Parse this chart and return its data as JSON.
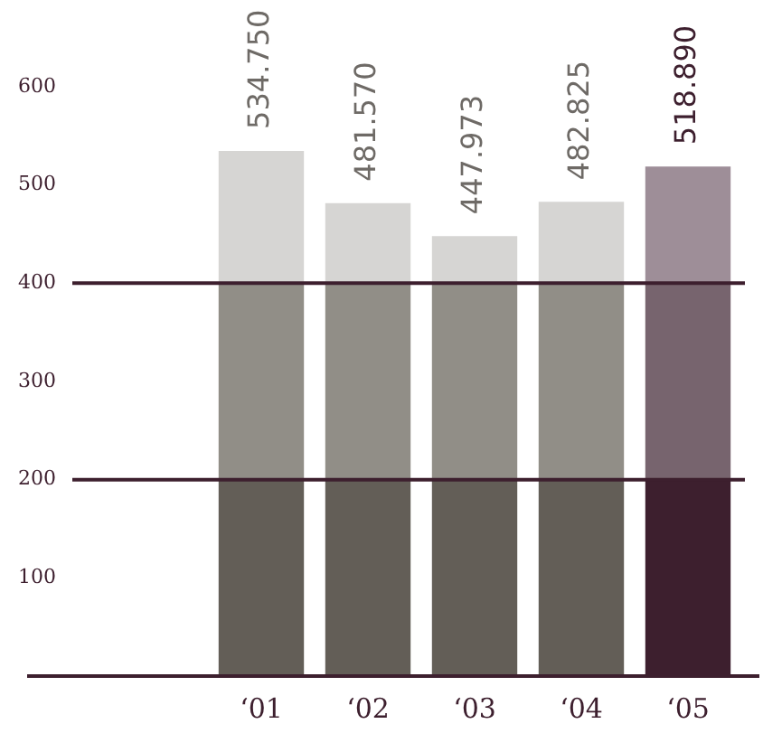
{
  "chart_data": {
    "type": "bar",
    "stacked": true,
    "categories": [
      "‘01",
      "‘02",
      "‘03",
      "‘04",
      "‘05"
    ],
    "series": [
      {
        "colors": [
          "#635e57",
          "#635e57",
          "#635e57",
          "#635e57",
          "#3d1f2e"
        ],
        "values": [
          200,
          200,
          200,
          200,
          200
        ]
      },
      {
        "colors": [
          "#918e87",
          "#918e87",
          "#918e87",
          "#918e87",
          "#77646e"
        ],
        "values": [
          200,
          200,
          200,
          200,
          200
        ]
      },
      {
        "colors": [
          "#d6d5d3",
          "#d6d5d3",
          "#d6d5d3",
          "#d6d5d3",
          "#9e8e98"
        ],
        "values": [
          134.75,
          81.57,
          47.973,
          82.825,
          118.89
        ]
      }
    ],
    "totals": [
      "534.750",
      "481.570",
      "447.973",
      "482.825",
      "518.890"
    ],
    "ylim": [
      0,
      600
    ],
    "yticks": [
      100,
      200,
      300,
      400,
      500,
      600
    ],
    "ref_lines": [
      {
        "axis": "y",
        "value": 200,
        "color": "#3d1f2e"
      },
      {
        "axis": "y",
        "value": 400,
        "color": "#3d1f2e"
      }
    ],
    "grid": false,
    "legend": false
  }
}
